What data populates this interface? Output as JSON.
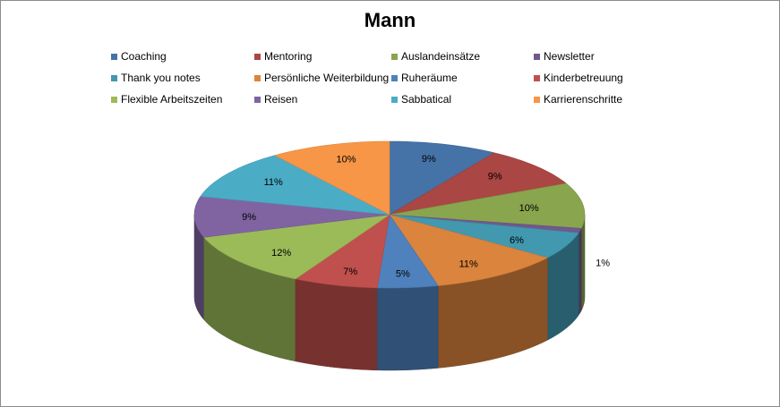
{
  "chart_data": {
    "type": "pie",
    "title": "Mann",
    "legend_position": "top",
    "slices": [
      {
        "name": "Coaching",
        "value": 9,
        "label": "9%",
        "color": "#4572a7"
      },
      {
        "name": "Mentoring",
        "value": 9,
        "label": "9%",
        "color": "#aa4643"
      },
      {
        "name": "Auslandeinsätze",
        "value": 10,
        "label": "10%",
        "color": "#89a54e"
      },
      {
        "name": "Newsletter",
        "value": 1,
        "label": "1%",
        "color": "#71588f"
      },
      {
        "name": "Thank you notes",
        "value": 6,
        "label": "6%",
        "color": "#4198af"
      },
      {
        "name": "Persönliche Weiterbildung",
        "value": 11,
        "label": "11%",
        "color": "#db843d"
      },
      {
        "name": "Ruheräume",
        "value": 5,
        "label": "5%",
        "color": "#4f81bd"
      },
      {
        "name": "Kinderbetreuung",
        "value": 7,
        "label": "7%",
        "color": "#c0504d"
      },
      {
        "name": "Flexible Arbeitszeiten",
        "value": 12,
        "label": "12%",
        "color": "#9bbb59"
      },
      {
        "name": "Reisen",
        "value": 9,
        "label": "9%",
        "color": "#8064a2"
      },
      {
        "name": "Sabbatical",
        "value": 11,
        "label": "11%",
        "color": "#4bacc6"
      },
      {
        "name": "Karrierenschritte",
        "value": 10,
        "label": "10%",
        "color": "#f79646"
      }
    ]
  }
}
